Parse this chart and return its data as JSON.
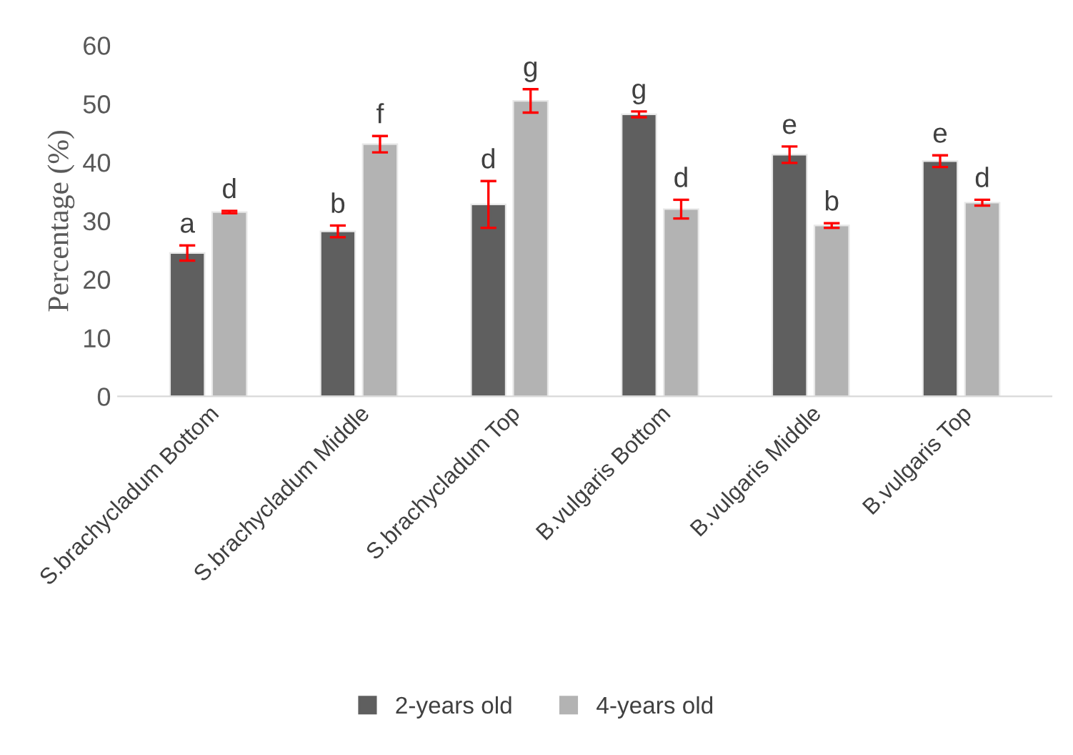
{
  "chart_data": {
    "type": "bar",
    "ylabel": "Percentage (%)",
    "categories": [
      "S.brachycladum Bottom",
      "S.brachycladum Middle",
      "S.brachycladum Top",
      "B.vulgaris Bottom",
      "B.vulgaris Middle",
      "B.vulgaris Top"
    ],
    "series": [
      {
        "name": "2-years old",
        "color": "#5f5f5f",
        "values": [
          24.5,
          28.2,
          32.8,
          48.2,
          41.3,
          40.2
        ],
        "errors": [
          1.3,
          1.0,
          4.0,
          0.5,
          1.4,
          1.0
        ]
      },
      {
        "name": "4-years old",
        "color": "#b3b3b3",
        "values": [
          31.5,
          43.1,
          50.5,
          32.0,
          29.2,
          33.1
        ],
        "errors": [
          0.2,
          1.4,
          2.0,
          1.6,
          0.4,
          0.5
        ]
      }
    ],
    "annotations": [
      "a",
      "d",
      "b",
      "f",
      "d",
      "g",
      "g",
      "d",
      "e",
      "b",
      "e",
      "d"
    ],
    "ylim": [
      0,
      60
    ],
    "yticks": [
      0,
      10,
      20,
      30,
      40,
      50,
      60
    ],
    "legend": "bottom",
    "grid": false
  }
}
